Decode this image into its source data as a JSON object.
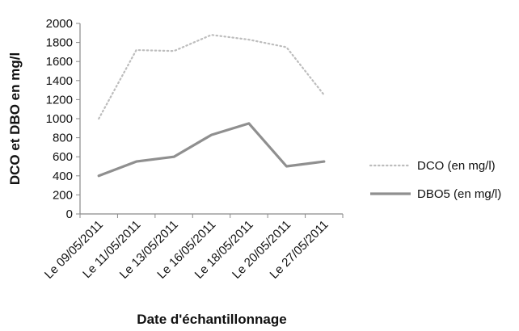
{
  "chart_data": {
    "type": "line",
    "title": "",
    "xlabel": "Date d'échantillonnage",
    "ylabel": "DCO  et DBO en mg/l",
    "categories": [
      "Le 09/05/2011",
      "Le 11/05/2011",
      "Le 13/05/2011",
      "Le 16/05/2011",
      "Le 18/05/2011",
      "Le 20/05/2011",
      "Le 27/05/2011"
    ],
    "ylim": [
      0,
      2000
    ],
    "yticks": [
      0,
      200,
      400,
      600,
      800,
      1000,
      1200,
      1400,
      1600,
      1800,
      2000
    ],
    "grid": false,
    "legend_position": "right",
    "series": [
      {
        "name": "DCO (en mg/l)",
        "values": [
          1000,
          1720,
          1710,
          1880,
          1830,
          1750,
          1250
        ],
        "color": "#bdbdbd",
        "style": "dotted"
      },
      {
        "name": "DBO5 (en mg/l)",
        "values": [
          400,
          550,
          600,
          830,
          950,
          500,
          550
        ],
        "color": "#8f8f8f",
        "style": "solid"
      }
    ]
  }
}
